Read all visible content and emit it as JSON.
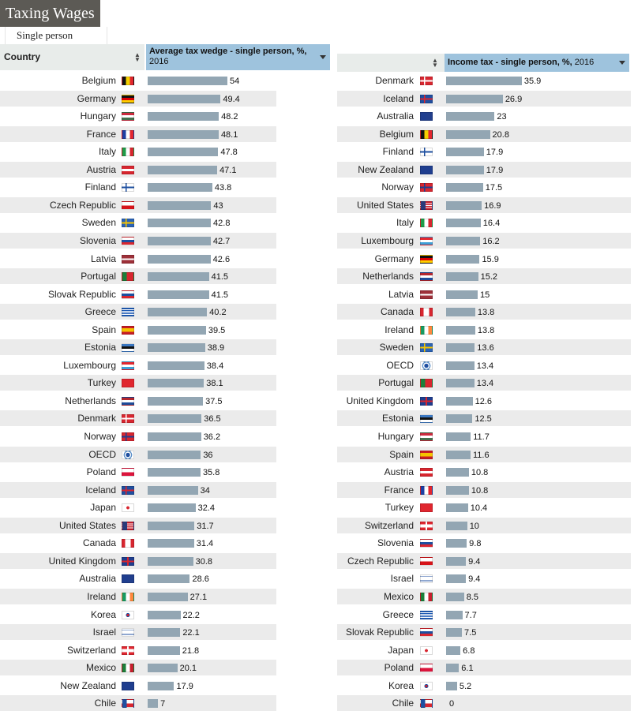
{
  "app": {
    "title": "Taxing Wages",
    "tab": "Single person"
  },
  "left_panel": {
    "country_header": "Country",
    "measure": "Average tax wedge - single person, %,",
    "year": "2016"
  },
  "right_panel": {
    "measure": "Income tax - single person, %,",
    "year": "2016"
  },
  "colors": {
    "bar": "#93a6b3",
    "header_accent": "#9ec3dd",
    "row_stripe": "#ebebeb",
    "title_bg": "#5c5a55"
  },
  "chart_data": [
    {
      "type": "bar",
      "orientation": "horizontal",
      "title": "Average tax wedge - single person, %, 2016",
      "categories": [
        "Belgium",
        "Germany",
        "Hungary",
        "France",
        "Italy",
        "Austria",
        "Finland",
        "Czech Republic",
        "Sweden",
        "Slovenia",
        "Latvia",
        "Portugal",
        "Slovak Republic",
        "Greece",
        "Spain",
        "Estonia",
        "Luxembourg",
        "Turkey",
        "Netherlands",
        "Denmark",
        "Norway",
        "OECD",
        "Poland",
        "Iceland",
        "Japan",
        "United States",
        "Canada",
        "United Kingdom",
        "Australia",
        "Ireland",
        "Korea",
        "Israel",
        "Switzerland",
        "Mexico",
        "New Zealand",
        "Chile"
      ],
      "values": [
        54,
        49.4,
        48.2,
        48.1,
        47.8,
        47.1,
        43.8,
        43,
        42.8,
        42.7,
        42.6,
        41.5,
        41.5,
        40.2,
        39.5,
        38.9,
        38.4,
        38.1,
        37.5,
        36.5,
        36.2,
        36,
        35.8,
        34,
        32.4,
        31.7,
        31.4,
        30.8,
        28.6,
        27.1,
        22.2,
        22.1,
        21.8,
        20.1,
        17.9,
        7
      ],
      "value_labels": [
        "54",
        "49.4",
        "48.2",
        "48.1",
        "47.8",
        "47.1",
        "43.8",
        "43",
        "42.8",
        "42.7",
        "42.6",
        "41.5",
        "41.5",
        "40.2",
        "39.5",
        "38.9",
        "38.4",
        "38.1",
        "37.5",
        "36.5",
        "36.2",
        "36",
        "35.8",
        "34",
        "32.4",
        "31.7",
        "31.4",
        "30.8",
        "28.6",
        "27.1",
        "22.2",
        "22.1",
        "21.8",
        "20.1",
        "17.9",
        "7"
      ],
      "flags": [
        "BE",
        "DE",
        "HU",
        "FR",
        "IT",
        "AT",
        "FI",
        "CZ",
        "SE",
        "SI",
        "LV",
        "PT",
        "SK",
        "GR",
        "ES",
        "EE",
        "LU",
        "TR",
        "NL",
        "DK",
        "NO",
        "OECD",
        "PL",
        "IS",
        "JP",
        "US",
        "CA",
        "GB",
        "AU",
        "IE",
        "KR",
        "IL",
        "CH",
        "MX",
        "NZ",
        "CL"
      ]
    },
    {
      "type": "bar",
      "orientation": "horizontal",
      "title": "Income tax - single person, %, 2016",
      "categories": [
        "Denmark",
        "Iceland",
        "Australia",
        "Belgium",
        "Finland",
        "New Zealand",
        "Norway",
        "United States",
        "Italy",
        "Luxembourg",
        "Germany",
        "Netherlands",
        "Latvia",
        "Canada",
        "Ireland",
        "Sweden",
        "OECD",
        "Portugal",
        "United Kingdom",
        "Estonia",
        "Hungary",
        "Spain",
        "Austria",
        "France",
        "Turkey",
        "Switzerland",
        "Slovenia",
        "Czech Republic",
        "Israel",
        "Mexico",
        "Greece",
        "Slovak Republic",
        "Japan",
        "Poland",
        "Korea",
        "Chile"
      ],
      "values": [
        35.9,
        26.9,
        23,
        20.8,
        17.9,
        17.9,
        17.5,
        16.9,
        16.4,
        16.2,
        15.9,
        15.2,
        15,
        13.8,
        13.8,
        13.6,
        13.4,
        13.4,
        12.6,
        12.5,
        11.7,
        11.6,
        10.8,
        10.8,
        10.4,
        10,
        9.8,
        9.4,
        9.4,
        8.5,
        7.7,
        7.5,
        6.8,
        6.1,
        5.2,
        0
      ],
      "value_labels": [
        "35.9",
        "26.9",
        "23",
        "20.8",
        "17.9",
        "17.9",
        "17.5",
        "16.9",
        "16.4",
        "16.2",
        "15.9",
        "15.2",
        "15",
        "13.8",
        "13.8",
        "13.6",
        "13.4",
        "13.4",
        "12.6",
        "12.5",
        "11.7",
        "11.6",
        "10.8",
        "10.8",
        "10.4",
        "10",
        "9.8",
        "9.4",
        "9.4",
        "8.5",
        "7.7",
        "7.5",
        "6.8",
        "6.1",
        "5.2",
        "0"
      ],
      "flags": [
        "DK",
        "IS",
        "AU",
        "BE",
        "FI",
        "NZ",
        "NO",
        "US",
        "IT",
        "LU",
        "DE",
        "NL",
        "LV",
        "CA",
        "IE",
        "SE",
        "OECD",
        "PT",
        "GB",
        "EE",
        "HU",
        "ES",
        "AT",
        "FR",
        "TR",
        "CH",
        "SI",
        "CZ",
        "IL",
        "MX",
        "GR",
        "SK",
        "JP",
        "PL",
        "KR",
        "CL"
      ]
    }
  ]
}
